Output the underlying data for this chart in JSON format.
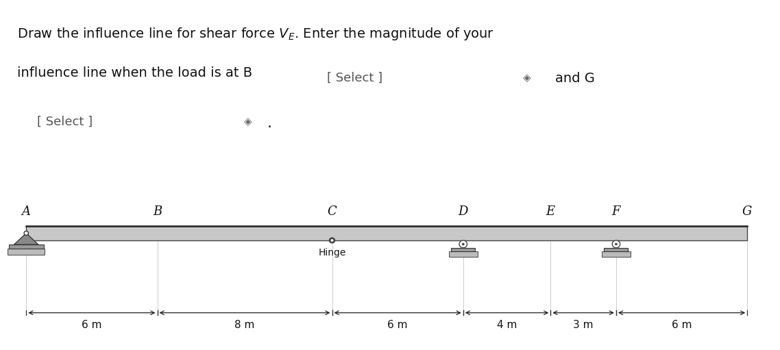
{
  "bg_color": "#ffffff",
  "text_color": "#111111",
  "gray_text": "#555555",
  "beam_fill": "#c8c8c8",
  "beam_edge": "#444444",
  "support_fill": "#888888",
  "support_edge": "#333333",
  "base_fill": "#aaaaaa",
  "base_edge": "#444444",
  "points": [
    "A",
    "B",
    "C",
    "D",
    "E",
    "F",
    "G"
  ],
  "point_positions_m": [
    0,
    6,
    14,
    20,
    24,
    27,
    33
  ],
  "spans_labels": [
    "6 m",
    "8 m",
    "6 m",
    "4 m",
    "3 m",
    "6 m"
  ],
  "hinge_label": "Hinge",
  "line1": "Draw the influence line for shear force $V_E$. Enter the magnitude of your",
  "line2_prefix": "influence line when the load is at B",
  "and_g": "and G",
  "select_text": "[ Select ]",
  "spinner": "◈",
  "period": ".",
  "font_size_main": 14,
  "font_size_select": 13,
  "font_size_beam_label": 13,
  "font_size_dim": 11
}
